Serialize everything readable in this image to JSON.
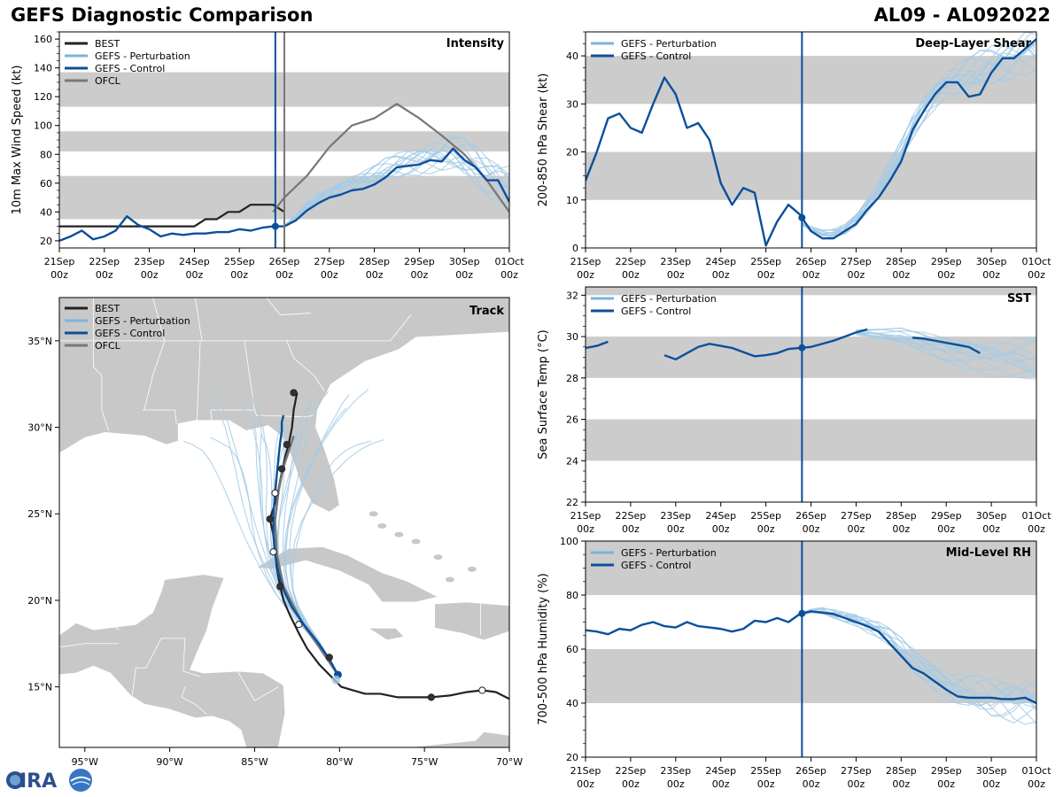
{
  "header": {
    "title": "GEFS Diagnostic Comparison",
    "storm_id": "AL09 - AL092022"
  },
  "colors": {
    "best": "#222222",
    "pert": "#7ab3dc",
    "ens_member": "#a6cbe5",
    "control": "#0b4f9b",
    "ofcl": "#777777",
    "band": "#cccccc",
    "land": "#c8c8c8"
  },
  "legend_labels": {
    "best": "BEST",
    "pert": "GEFS - Perturbation",
    "control": "GEFS - Control",
    "ofcl": "OFCL"
  },
  "time_ticks": [
    "21Sep\n00z",
    "22Sep\n00z",
    "23Sep\n00z",
    "24Sep\n00z",
    "25Sep\n00z",
    "26Sep\n00z",
    "27Sep\n00z",
    "28Sep\n00z",
    "29Sep\n00z",
    "30Sep\n00z",
    "01Oct\n00z"
  ],
  "init_time_days": 4.8,
  "chart_data": [
    {
      "id": "intensity",
      "type": "line",
      "title": "Intensity",
      "ylabel": "10m Max Wind Speed (kt)",
      "xlim": [
        0,
        10
      ],
      "ylim": [
        15,
        165
      ],
      "yticks": [
        20,
        40,
        60,
        80,
        100,
        120,
        140,
        160
      ],
      "bands": [
        [
          35,
          65
        ],
        [
          82,
          96
        ],
        [
          113,
          137
        ]
      ],
      "ofcl_time_days": 5,
      "legend": [
        "best",
        "pert",
        "control",
        "ofcl"
      ],
      "series": [
        {
          "name": "BEST",
          "x": [
            0,
            0.5,
            1,
            1.5,
            2,
            2.5,
            3,
            3.25,
            3.5,
            3.75,
            4,
            4.25,
            4.5,
            4.75,
            5
          ],
          "values": [
            30,
            30,
            30,
            30,
            30,
            30,
            30,
            35,
            35,
            40,
            40,
            45,
            45,
            45,
            40
          ]
        },
        {
          "name": "OFCL",
          "x": [
            4.75,
            5,
            5.5,
            6,
            6.5,
            7,
            7.5,
            8,
            8.5,
            9,
            9.5,
            10
          ],
          "values": [
            40,
            50,
            65,
            85,
            100,
            105,
            115,
            105,
            93,
            80,
            62,
            40
          ]
        },
        {
          "name": "GEFS - Control",
          "x": [
            0,
            0.25,
            0.5,
            0.75,
            1,
            1.25,
            1.5,
            1.75,
            2,
            2.25,
            2.5,
            2.75,
            3,
            3.25,
            3.5,
            3.75,
            4,
            4.25,
            4.5,
            4.75,
            5,
            5.25,
            5.5,
            5.75,
            6,
            6.25,
            6.5,
            6.75,
            7,
            7.25,
            7.5,
            7.75,
            8,
            8.25,
            8.5,
            8.75,
            9,
            9.25,
            9.5,
            9.75,
            10
          ],
          "values": [
            20,
            23,
            27,
            21,
            23,
            27,
            37,
            31,
            28,
            23,
            25,
            24,
            25,
            25,
            26,
            26,
            28,
            27,
            29,
            30,
            30,
            34,
            41,
            46,
            50,
            52,
            55,
            56,
            59,
            64,
            71,
            72,
            73,
            76,
            75,
            84,
            76,
            71,
            62,
            62,
            47
          ]
        },
        {
          "name": "GEFS - Perturbation",
          "x": [
            5,
            5.25,
            5.5,
            5.75,
            6,
            6.25,
            6.5,
            6.75,
            7,
            7.25,
            7.5,
            7.75,
            8,
            8.25,
            8.5,
            8.75,
            9,
            9.25,
            9.5,
            9.75,
            10
          ],
          "values": [
            30,
            36,
            44,
            50,
            53,
            57,
            60,
            62,
            65,
            69,
            72,
            75,
            76,
            78,
            79,
            80,
            77,
            72,
            66,
            62,
            58
          ]
        }
      ]
    },
    {
      "id": "shear",
      "type": "line",
      "title": "Deep-Layer Shear",
      "ylabel": "200-850 hPa Shear (kt)",
      "xlim": [
        0,
        10
      ],
      "ylim": [
        0,
        45
      ],
      "yticks": [
        0,
        10,
        20,
        30,
        40
      ],
      "bands": [
        [
          10,
          20
        ],
        [
          30,
          40
        ]
      ],
      "legend": [
        "pert",
        "control"
      ],
      "series": [
        {
          "name": "GEFS - Control",
          "x": [
            0,
            0.25,
            0.5,
            0.75,
            1,
            1.25,
            1.5,
            1.75,
            2,
            2.25,
            2.5,
            2.75,
            3,
            3.25,
            3.5,
            3.75,
            4,
            4.25,
            4.5,
            4.75,
            5,
            5.25,
            5.5,
            5.75,
            6,
            6.25,
            6.5,
            6.75,
            7,
            7.25,
            7.5,
            7.75,
            8,
            8.25,
            8.5,
            8.75,
            9,
            9.25,
            9.5,
            9.75,
            10
          ],
          "values": [
            14,
            20,
            27,
            28,
            25,
            24,
            30,
            35.5,
            32,
            25,
            26,
            22.5,
            13.5,
            9,
            12.5,
            11.5,
            0.5,
            5.5,
            9,
            7,
            3.5,
            2,
            2,
            3.5,
            5,
            8,
            10.5,
            14,
            18,
            24.5,
            28.5,
            32,
            34.5,
            34.5,
            31.5,
            32,
            36.5,
            39.5,
            39.5,
            41.5,
            43.5
          ]
        },
        {
          "name": "GEFS - Perturbation",
          "x": [
            4.8,
            5,
            5.25,
            5.5,
            5.75,
            6,
            6.25,
            6.5,
            6.75,
            7,
            7.25,
            7.5,
            7.75,
            8,
            8.25,
            8.5,
            8.75,
            9,
            9.25,
            9.5,
            9.75,
            10
          ],
          "values": [
            5,
            4,
            3,
            3,
            4,
            6,
            9,
            12,
            16,
            20,
            25,
            29,
            32,
            34,
            35,
            36,
            37,
            38,
            39,
            40,
            41,
            41
          ]
        }
      ]
    },
    {
      "id": "sst",
      "type": "line",
      "title": "SST",
      "ylabel": "Sea Surface Temp (°C)",
      "xlim": [
        0,
        10
      ],
      "ylim": [
        22,
        32.4
      ],
      "yticks": [
        22,
        24,
        26,
        28,
        30,
        32
      ],
      "bands": [
        [
          24,
          26
        ],
        [
          28,
          30
        ],
        [
          32,
          34
        ]
      ],
      "legend": [
        "pert",
        "control"
      ],
      "series": [
        {
          "name": "GEFS - Control",
          "segments": [
            {
              "x": [
                0,
                0.25,
                0.5
              ],
              "values": [
                29.45,
                29.55,
                29.75
              ]
            },
            {
              "x": [
                1.75,
                2,
                2.25,
                2.5,
                2.75,
                3,
                3.25,
                3.5,
                3.75,
                4,
                4.25,
                4.5,
                4.75,
                5,
                5.25,
                5.5,
                5.75,
                6,
                6.25
              ],
              "values": [
                29.1,
                28.9,
                29.2,
                29.5,
                29.65,
                29.55,
                29.45,
                29.25,
                29.05,
                29.1,
                29.2,
                29.4,
                29.45,
                29.5,
                29.65,
                29.8,
                30,
                30.2,
                30.35
              ]
            },
            {
              "x": [
                7.25,
                7.5,
                7.75,
                8,
                8.25,
                8.5,
                8.75
              ],
              "values": [
                29.95,
                29.9,
                29.8,
                29.7,
                29.6,
                29.5,
                29.2
              ]
            }
          ]
        },
        {
          "name": "GEFS - Perturbation",
          "x": [
            6,
            6.5,
            7,
            7.5,
            8,
            8.5,
            9,
            9.5,
            10
          ],
          "values": [
            30.2,
            30.1,
            30.0,
            29.7,
            29.4,
            29.2,
            29.0,
            28.9,
            28.8
          ]
        }
      ]
    },
    {
      "id": "rh",
      "type": "line",
      "title": "Mid-Level RH",
      "ylabel": "700-500 hPa Humidity (%)",
      "xlim": [
        0,
        10
      ],
      "ylim": [
        20,
        100
      ],
      "yticks": [
        20,
        40,
        60,
        80,
        100
      ],
      "bands": [
        [
          40,
          60
        ],
        [
          80,
          100
        ]
      ],
      "legend": [
        "pert",
        "control"
      ],
      "series": [
        {
          "name": "GEFS - Control",
          "x": [
            0,
            0.25,
            0.5,
            0.75,
            1,
            1.25,
            1.5,
            1.75,
            2,
            2.25,
            2.5,
            2.75,
            3,
            3.25,
            3.5,
            3.75,
            4,
            4.25,
            4.5,
            4.75,
            5,
            5.25,
            5.5,
            5.75,
            6,
            6.25,
            6.5,
            6.75,
            7,
            7.25,
            7.5,
            7.75,
            8,
            8.25,
            8.5,
            8.75,
            9,
            9.25,
            9.5,
            9.75,
            10
          ],
          "values": [
            67,
            66.5,
            65.5,
            67.5,
            67,
            69,
            70,
            68.5,
            68,
            70,
            68.5,
            68,
            67.5,
            66.5,
            67.5,
            70.5,
            70,
            71.5,
            70,
            73,
            74,
            73.5,
            73,
            71.5,
            70,
            68.5,
            66.5,
            62,
            57.5,
            53,
            51,
            48,
            45,
            42.5,
            42,
            42,
            42,
            41.5,
            41.5,
            42,
            40
          ]
        },
        {
          "name": "GEFS - Perturbation",
          "x": [
            4.8,
            5,
            5.25,
            5.5,
            5.75,
            6,
            6.25,
            6.5,
            6.75,
            7,
            7.25,
            7.5,
            7.75,
            8,
            8.25,
            8.5,
            8.75,
            9,
            9.25,
            9.5,
            9.75,
            10
          ],
          "values": [
            73,
            74,
            74,
            73,
            72,
            71,
            69,
            67,
            64,
            60,
            56,
            53,
            50,
            47,
            45,
            44,
            43,
            42,
            42,
            41,
            41,
            40
          ]
        }
      ]
    },
    {
      "id": "track",
      "type": "scatter",
      "title": "Track",
      "lon_ticks": [
        "95°W",
        "90°W",
        "85°W",
        "80°W",
        "75°W",
        "70°W"
      ],
      "lat_ticks": [
        "15°N",
        "20°N",
        "25°N",
        "30°N",
        "35°N"
      ],
      "xlim": [
        -96.5,
        -70
      ],
      "ylim": [
        11.5,
        37.5
      ],
      "legend": [
        "best",
        "pert",
        "control",
        "ofcl"
      ],
      "series": [
        {
          "name": "BEST",
          "lon": [
            -70,
            -70.8,
            -71.6,
            -72.5,
            -73.5,
            -74.6,
            -75.5,
            -76.6,
            -77.6,
            -78.5,
            -79.2,
            -79.9,
            -80.5,
            -81.2,
            -81.9,
            -82.4,
            -82.9,
            -83.3,
            -83.5,
            -83.7,
            -83.8,
            -83.9,
            -84.1,
            -83.8,
            -83.6,
            -83.4,
            -83.2,
            -83.0,
            -82.8,
            -82.7,
            -82.5
          ],
          "lat": [
            14.3,
            14.7,
            14.8,
            14.7,
            14.5,
            14.4,
            14.4,
            14.4,
            14.6,
            14.6,
            14.8,
            15.0,
            15.6,
            16.3,
            17.2,
            18.1,
            19.1,
            20.0,
            20.8,
            21.9,
            22.9,
            23.8,
            24.7,
            25.6,
            26.4,
            27.4,
            28.3,
            29.0,
            30.0,
            31.0,
            32.0
          ]
        },
        {
          "name": "BEST_markers",
          "lon": [
            -74.6,
            -71.6,
            -80.6,
            -82.4,
            -83.5,
            -83.9,
            -84.1,
            -83.8,
            -83.4,
            -83.1,
            -82.7
          ],
          "lat": [
            14.4,
            14.8,
            16.7,
            18.6,
            20.8,
            22.8,
            24.7,
            26.2,
            27.6,
            29.0,
            32.0
          ],
          "open": [
            false,
            true,
            false,
            true,
            false,
            true,
            false,
            true,
            false,
            false,
            false
          ]
        },
        {
          "name": "OFCL",
          "lon": [
            -80.1,
            -81.2,
            -82.2,
            -83.3,
            -83.7,
            -83.8,
            -83.6,
            -83.3,
            -83.0,
            -82.7
          ],
          "lat": [
            15.7,
            17.3,
            18.7,
            20.8,
            22.7,
            24.6,
            26.3,
            27.7,
            28.6,
            29.5
          ]
        },
        {
          "name": "GEFS - Control",
          "lon": [
            -80.1,
            -80.6,
            -81.3,
            -82.1,
            -82.8,
            -83.3,
            -83.6,
            -83.8,
            -83.9,
            -83.9,
            -83.8,
            -83.7,
            -83.6,
            -83.5,
            -83.4,
            -83.4,
            -83.3
          ],
          "lat": [
            15.7,
            16.6,
            17.6,
            18.6,
            19.6,
            20.6,
            21.6,
            22.7,
            23.8,
            25.0,
            26.1,
            27.2,
            28.2,
            29.1,
            29.8,
            30.3,
            30.7
          ]
        }
      ]
    }
  ]
}
